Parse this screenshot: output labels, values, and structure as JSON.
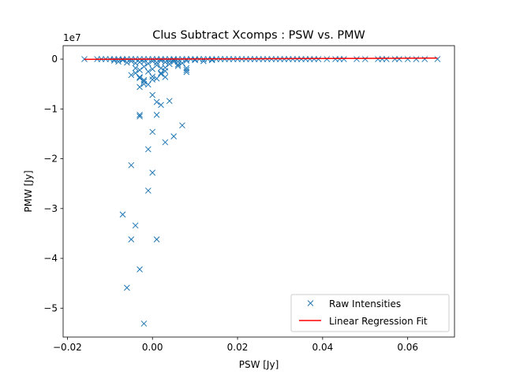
{
  "chart_data": {
    "type": "scatter",
    "title": "Clus Subtract Xcomps : PSW vs. PMW",
    "xlabel": "PSW [Jy]",
    "ylabel": "PMW [Jy]",
    "y_offset_label": "1e7",
    "xlim": [
      -0.021,
      0.071
    ],
    "ylim": [
      -5.58,
      0.27
    ],
    "x_ticks": [
      -0.02,
      0.0,
      0.02,
      0.04,
      0.06
    ],
    "x_tick_labels": [
      "−0.02",
      "0.00",
      "0.02",
      "0.04",
      "0.06"
    ],
    "y_ticks": [
      0,
      -1,
      -2,
      -3,
      -4,
      -5
    ],
    "y_tick_labels": [
      "0",
      "−1",
      "−2",
      "−3",
      "−4",
      "−5"
    ],
    "grid": false,
    "legend_position": "lower-right",
    "series": [
      {
        "name": "Raw Intensities",
        "marker": "x",
        "color": "#1f77b4",
        "points": [
          [
            -0.016,
            0
          ],
          [
            -0.013,
            0
          ],
          [
            -0.012,
            0
          ],
          [
            -0.011,
            0
          ],
          [
            -0.01,
            0
          ],
          [
            -0.009,
            0
          ],
          [
            -0.008,
            0
          ],
          [
            -0.007,
            0
          ],
          [
            -0.006,
            0
          ],
          [
            -0.005,
            0
          ],
          [
            -0.004,
            0
          ],
          [
            -0.003,
            0
          ],
          [
            -0.002,
            0
          ],
          [
            -0.001,
            0
          ],
          [
            0.0,
            0
          ],
          [
            0.001,
            0
          ],
          [
            0.002,
            0
          ],
          [
            0.003,
            0
          ],
          [
            0.004,
            0
          ],
          [
            0.005,
            0
          ],
          [
            0.006,
            0
          ],
          [
            0.007,
            0
          ],
          [
            0.008,
            0
          ],
          [
            0.009,
            0
          ],
          [
            0.01,
            0
          ],
          [
            0.011,
            0
          ],
          [
            0.012,
            0
          ],
          [
            0.013,
            0
          ],
          [
            0.014,
            0
          ],
          [
            0.015,
            0
          ],
          [
            0.016,
            0
          ],
          [
            0.017,
            0
          ],
          [
            0.018,
            0
          ],
          [
            0.019,
            0
          ],
          [
            0.02,
            0
          ],
          [
            0.021,
            0
          ],
          [
            0.022,
            0
          ],
          [
            0.023,
            0
          ],
          [
            0.024,
            0
          ],
          [
            0.025,
            0
          ],
          [
            0.026,
            0
          ],
          [
            0.027,
            0
          ],
          [
            0.028,
            0
          ],
          [
            0.029,
            0
          ],
          [
            0.03,
            0
          ],
          [
            0.031,
            0
          ],
          [
            0.032,
            0
          ],
          [
            0.033,
            0
          ],
          [
            0.034,
            0
          ],
          [
            0.035,
            0
          ],
          [
            0.036,
            0
          ],
          [
            0.037,
            0
          ],
          [
            0.038,
            0
          ],
          [
            0.039,
            0
          ],
          [
            0.041,
            0
          ],
          [
            0.043,
            0
          ],
          [
            0.044,
            0
          ],
          [
            0.045,
            0
          ],
          [
            0.048,
            0
          ],
          [
            0.05,
            0
          ],
          [
            0.053,
            0
          ],
          [
            0.054,
            0
          ],
          [
            0.055,
            0
          ],
          [
            0.057,
            0
          ],
          [
            0.058,
            0
          ],
          [
            0.06,
            0
          ],
          [
            0.062,
            0
          ],
          [
            0.064,
            0
          ],
          [
            0.067,
            0
          ],
          [
            -0.009,
            -0.03
          ],
          [
            -0.008,
            -0.05
          ],
          [
            -0.007,
            -0.02
          ],
          [
            -0.006,
            -0.07
          ],
          [
            -0.005,
            -0.04
          ],
          [
            -0.004,
            -0.08
          ],
          [
            -0.003,
            -0.06
          ],
          [
            -0.002,
            -0.05
          ],
          [
            -0.001,
            -0.09
          ],
          [
            0.0,
            -0.04
          ],
          [
            0.001,
            -0.07
          ],
          [
            0.002,
            -0.03
          ],
          [
            0.003,
            -0.06
          ],
          [
            0.004,
            -0.04
          ],
          [
            0.005,
            -0.02
          ],
          [
            0.006,
            -0.05
          ],
          [
            0.008,
            -0.03
          ],
          [
            0.01,
            -0.02
          ],
          [
            0.012,
            -0.04
          ],
          [
            0.014,
            -0.02
          ],
          [
            -0.004,
            -0.18
          ],
          [
            -0.003,
            -0.22
          ],
          [
            -0.002,
            -0.15
          ],
          [
            -0.001,
            -0.25
          ],
          [
            0.0,
            -0.2
          ],
          [
            0.001,
            -0.12
          ],
          [
            0.002,
            -0.28
          ],
          [
            0.003,
            -0.17
          ],
          [
            0.004,
            -0.1
          ],
          [
            0.006,
            -0.14
          ],
          [
            0.007,
            -0.08
          ],
          [
            0.008,
            -0.22
          ],
          [
            -0.005,
            -0.32
          ],
          [
            -0.003,
            -0.38
          ],
          [
            -0.002,
            -0.42
          ],
          [
            0.0,
            -0.35
          ],
          [
            0.002,
            -0.3
          ],
          [
            0.003,
            -0.36
          ],
          [
            0.005,
            -0.05
          ],
          [
            0.006,
            -0.11
          ],
          [
            -0.004,
            -0.28
          ],
          [
            -0.003,
            -0.36
          ],
          [
            -0.002,
            -0.45
          ],
          [
            -0.001,
            -0.51
          ],
          [
            0.0,
            -0.41
          ],
          [
            0.001,
            -0.39
          ],
          [
            0.002,
            -0.18
          ],
          [
            0.003,
            -0.24
          ],
          [
            -0.003,
            -0.56
          ],
          [
            -0.002,
            -0.5
          ],
          [
            0.0,
            -0.72
          ],
          [
            0.001,
            -0.86
          ],
          [
            0.002,
            -0.92
          ],
          [
            0.004,
            -0.84
          ],
          [
            0.008,
            -0.18
          ],
          [
            0.008,
            -0.26
          ],
          [
            -0.003,
            -1.12
          ],
          [
            -0.003,
            -1.15
          ],
          [
            0.001,
            -1.12
          ],
          [
            0.007,
            -1.33
          ],
          [
            0.005,
            -1.55
          ],
          [
            0.003,
            -1.67
          ],
          [
            0.0,
            -1.46
          ],
          [
            -0.001,
            -1.81
          ],
          [
            -0.005,
            -2.13
          ],
          [
            0.0,
            -2.28
          ],
          [
            -0.001,
            -2.64
          ],
          [
            -0.007,
            -3.12
          ],
          [
            -0.004,
            -3.34
          ],
          [
            -0.005,
            -3.62
          ],
          [
            0.001,
            -3.62
          ],
          [
            -0.003,
            -4.22
          ],
          [
            -0.006,
            -4.59
          ],
          [
            -0.002,
            -5.31
          ]
        ]
      },
      {
        "name": "Linear Regression Fit",
        "type": "line",
        "color": "#ff0000",
        "points": [
          [
            -0.016,
            -0.004
          ],
          [
            0.067,
            0.02
          ]
        ]
      }
    ]
  }
}
